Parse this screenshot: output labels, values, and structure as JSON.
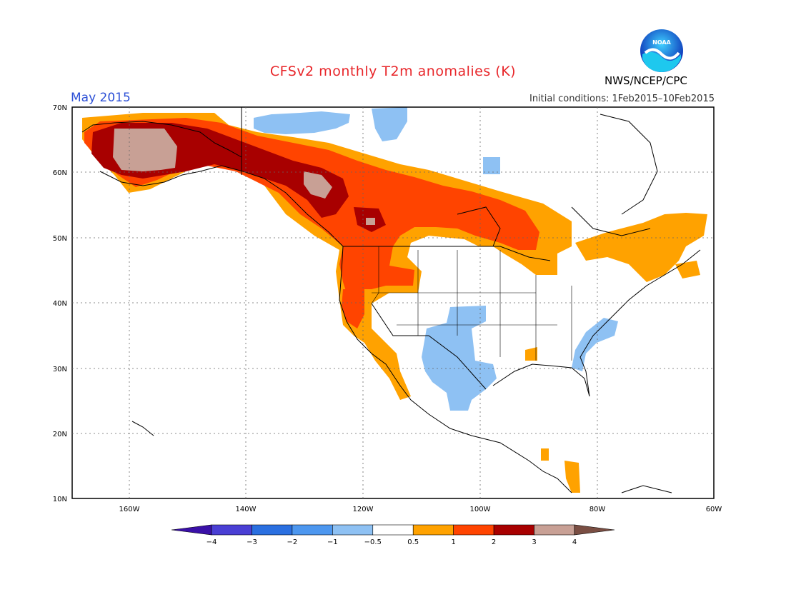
{
  "title": "CFSv2 monthly T2m anomalies (K)",
  "period": "May 2015",
  "initial_conditions": "Initial conditions: 1Feb2015–10Feb2015",
  "agency": "NWS/NCEP/CPC",
  "logo_text": "NOAA",
  "lat_labels": [
    "70N",
    "60N",
    "50N",
    "40N",
    "30N",
    "20N",
    "10N"
  ],
  "lon_labels": [
    "160W",
    "140W",
    "120W",
    "100W",
    "80W",
    "60W"
  ],
  "colorbar": {
    "labels": [
      "−4",
      "−3",
      "−2",
      "−1",
      "−0.5",
      "0.5",
      "1",
      "2",
      "3",
      "4"
    ],
    "colors": [
      "#3a10a8",
      "#4a3fd4",
      "#2a6fe0",
      "#4d97ef",
      "#8ec1f3",
      "#ffffff",
      "#ffa200",
      "#ff4400",
      "#a80000",
      "#c8a095",
      "#7a4e43"
    ]
  },
  "regions": [
    {
      "name": "alaska-warm",
      "class": "2 to 3"
    },
    {
      "name": "canada-warm",
      "class": "1 to 2"
    },
    {
      "name": "southwest-cool",
      "class": "-1 to -0.5"
    }
  ]
}
